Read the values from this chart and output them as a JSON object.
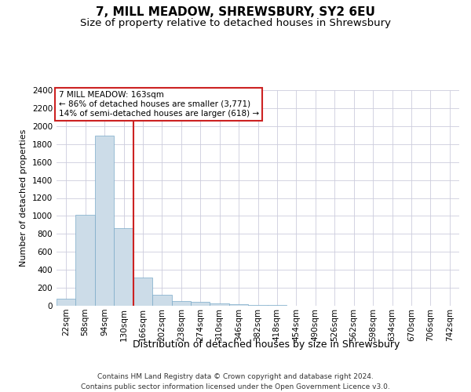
{
  "title": "7, MILL MEADOW, SHREWSBURY, SY2 6EU",
  "subtitle": "Size of property relative to detached houses in Shrewsbury",
  "xlabel": "Distribution of detached houses by size in Shrewsbury",
  "ylabel": "Number of detached properties",
  "footer_line1": "Contains HM Land Registry data © Crown copyright and database right 2024.",
  "footer_line2": "Contains public sector information licensed under the Open Government Licence v3.0.",
  "bin_labels": [
    "22sqm",
    "58sqm",
    "94sqm",
    "130sqm",
    "166sqm",
    "202sqm",
    "238sqm",
    "274sqm",
    "310sqm",
    "346sqm",
    "382sqm",
    "418sqm",
    "454sqm",
    "490sqm",
    "526sqm",
    "562sqm",
    "598sqm",
    "634sqm",
    "670sqm",
    "706sqm",
    "742sqm"
  ],
  "bar_values": [
    80,
    1010,
    1890,
    860,
    310,
    120,
    50,
    40,
    30,
    20,
    10,
    10,
    0,
    0,
    0,
    0,
    0,
    0,
    0,
    0,
    0
  ],
  "bar_color": "#ccdce8",
  "bar_edge_color": "#7aaac8",
  "vline_bin_index": 4,
  "vline_color": "#cc2222",
  "annotation_line1": "7 MILL MEADOW: 163sqm",
  "annotation_line2": "← 86% of detached houses are smaller (3,771)",
  "annotation_line3": "14% of semi-detached houses are larger (618) →",
  "annotation_box_facecolor": "#ffffff",
  "annotation_box_edgecolor": "#cc2222",
  "ylim": [
    0,
    2400
  ],
  "yticks": [
    0,
    200,
    400,
    600,
    800,
    1000,
    1200,
    1400,
    1600,
    1800,
    2000,
    2200,
    2400
  ],
  "background_color": "#ffffff",
  "grid_color": "#ccccdd",
  "title_fontsize": 11,
  "subtitle_fontsize": 9.5,
  "xlabel_fontsize": 9,
  "ylabel_fontsize": 8,
  "tick_fontsize": 7.5,
  "annotation_fontsize": 7.5,
  "footer_fontsize": 6.5
}
